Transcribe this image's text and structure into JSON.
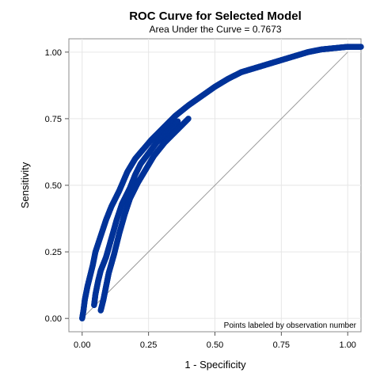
{
  "chart_data": {
    "type": "scatter",
    "title": "ROC Curve for Selected Model",
    "subtitle": "Area Under the Curve = 0.7673",
    "xlabel": "1 - Specificity",
    "ylabel": "Sensitivity",
    "xlim": [
      -0.05,
      1.05
    ],
    "ylim": [
      -0.05,
      1.05
    ],
    "x_ticks": [
      "0.00",
      "0.25",
      "0.50",
      "0.75",
      "1.00"
    ],
    "y_ticks": [
      "0.00",
      "0.25",
      "0.50",
      "0.75",
      "1.00"
    ],
    "grid": true,
    "reference_line": {
      "from": [
        0,
        0
      ],
      "to": [
        1,
        1
      ]
    },
    "annotation": "Points labeled by observation number",
    "marker_color": "#003399",
    "reference_line_color": "#9a9a9a",
    "series": [
      {
        "points": [
          [
            0.0,
            0.0
          ],
          [
            0.005,
            0.03
          ],
          [
            0.01,
            0.07
          ],
          [
            0.02,
            0.12
          ],
          [
            0.03,
            0.16
          ],
          [
            0.04,
            0.2
          ],
          [
            0.05,
            0.25
          ],
          [
            0.07,
            0.31
          ],
          [
            0.09,
            0.37
          ],
          [
            0.11,
            0.42
          ],
          [
            0.14,
            0.48
          ],
          [
            0.17,
            0.55
          ],
          [
            0.2,
            0.6
          ],
          [
            0.23,
            0.635
          ],
          [
            0.26,
            0.67
          ],
          [
            0.3,
            0.71
          ],
          [
            0.35,
            0.76
          ],
          [
            0.4,
            0.8
          ],
          [
            0.45,
            0.835
          ],
          [
            0.5,
            0.87
          ],
          [
            0.55,
            0.9
          ],
          [
            0.6,
            0.925
          ],
          [
            0.65,
            0.94
          ],
          [
            0.7,
            0.955
          ],
          [
            0.75,
            0.97
          ],
          [
            0.8,
            0.985
          ],
          [
            0.85,
            1.0
          ],
          [
            0.9,
            1.01
          ],
          [
            0.95,
            1.015
          ],
          [
            1.0,
            1.02
          ],
          [
            1.05,
            1.02
          ]
        ]
      },
      {
        "points": [
          [
            0.045,
            0.05
          ],
          [
            0.05,
            0.09
          ],
          [
            0.06,
            0.14
          ],
          [
            0.07,
            0.18
          ],
          [
            0.09,
            0.23
          ],
          [
            0.11,
            0.3
          ],
          [
            0.13,
            0.37
          ],
          [
            0.15,
            0.43
          ],
          [
            0.18,
            0.49
          ],
          [
            0.2,
            0.54
          ],
          [
            0.22,
            0.58
          ],
          [
            0.25,
            0.62
          ],
          [
            0.28,
            0.66
          ],
          [
            0.32,
            0.7
          ],
          [
            0.36,
            0.74
          ]
        ]
      },
      {
        "points": [
          [
            0.07,
            0.03
          ],
          [
            0.08,
            0.07
          ],
          [
            0.09,
            0.12
          ],
          [
            0.1,
            0.17
          ],
          [
            0.12,
            0.24
          ],
          [
            0.14,
            0.32
          ],
          [
            0.16,
            0.39
          ],
          [
            0.18,
            0.45
          ],
          [
            0.21,
            0.51
          ],
          [
            0.24,
            0.56
          ],
          [
            0.27,
            0.61
          ],
          [
            0.31,
            0.66
          ],
          [
            0.35,
            0.7
          ],
          [
            0.4,
            0.75
          ]
        ]
      }
    ]
  }
}
